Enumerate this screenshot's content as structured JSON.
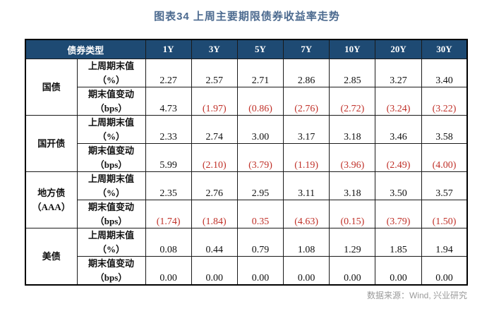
{
  "title": "图表34  上周主要期限债券收益率走势",
  "source": "数据来源：Wind, 兴业研究",
  "colors": {
    "header_bg": "#1E4A73",
    "header_text": "#FFFFFF",
    "negative_red": "#C03028",
    "title_blue": "#4C6A8F",
    "source_gray": "#9A9A9A"
  },
  "table": {
    "header": {
      "bond_type": "债券类型",
      "tenors": [
        "1Y",
        "3Y",
        "5Y",
        "7Y",
        "10Y",
        "20Y",
        "30Y"
      ]
    },
    "row_labels": {
      "value": "上周期末值\n（%）",
      "change": "期末值变动\n（bps）"
    },
    "groups": [
      {
        "name": "国债",
        "values": [
          "2.27",
          "2.57",
          "2.71",
          "2.86",
          "2.85",
          "3.27",
          "3.40"
        ],
        "changes": [
          {
            "text": "4.73",
            "red": false
          },
          {
            "text": "(1.97)",
            "red": true
          },
          {
            "text": "(0.86)",
            "red": true
          },
          {
            "text": "(2.76)",
            "red": true
          },
          {
            "text": "(2.72)",
            "red": true
          },
          {
            "text": "(3.24)",
            "red": true
          },
          {
            "text": "(3.22)",
            "red": true
          }
        ]
      },
      {
        "name": "国开债",
        "values": [
          "2.33",
          "2.74",
          "3.00",
          "3.17",
          "3.18",
          "3.46",
          "3.58"
        ],
        "changes": [
          {
            "text": "5.99",
            "red": false
          },
          {
            "text": "(2.10)",
            "red": true
          },
          {
            "text": "(3.79)",
            "red": true
          },
          {
            "text": "(1.19)",
            "red": true
          },
          {
            "text": "(3.96)",
            "red": true
          },
          {
            "text": "(2.49)",
            "red": true
          },
          {
            "text": "(4.00)",
            "red": true
          }
        ]
      },
      {
        "name": "地方债\n（AAA）",
        "values": [
          "2.35",
          "2.76",
          "2.95",
          "3.11",
          "3.18",
          "3.50",
          "3.57"
        ],
        "changes": [
          {
            "text": "(1.74)",
            "red": true
          },
          {
            "text": "(1.84)",
            "red": true
          },
          {
            "text": "0.35",
            "red": true
          },
          {
            "text": "(4.63)",
            "red": true
          },
          {
            "text": "(0.15)",
            "red": true
          },
          {
            "text": "(3.79)",
            "red": true
          },
          {
            "text": "(1.50)",
            "red": true
          }
        ]
      },
      {
        "name": "美债",
        "values": [
          "0.08",
          "0.44",
          "0.79",
          "1.08",
          "1.29",
          "1.85",
          "1.94"
        ],
        "changes": [
          {
            "text": "0.00",
            "red": false
          },
          {
            "text": "0.00",
            "red": false
          },
          {
            "text": "0.00",
            "red": false
          },
          {
            "text": "0.00",
            "red": false
          },
          {
            "text": "0.00",
            "red": false
          },
          {
            "text": "0.00",
            "red": false
          },
          {
            "text": "0.00",
            "red": false
          }
        ]
      }
    ]
  }
}
